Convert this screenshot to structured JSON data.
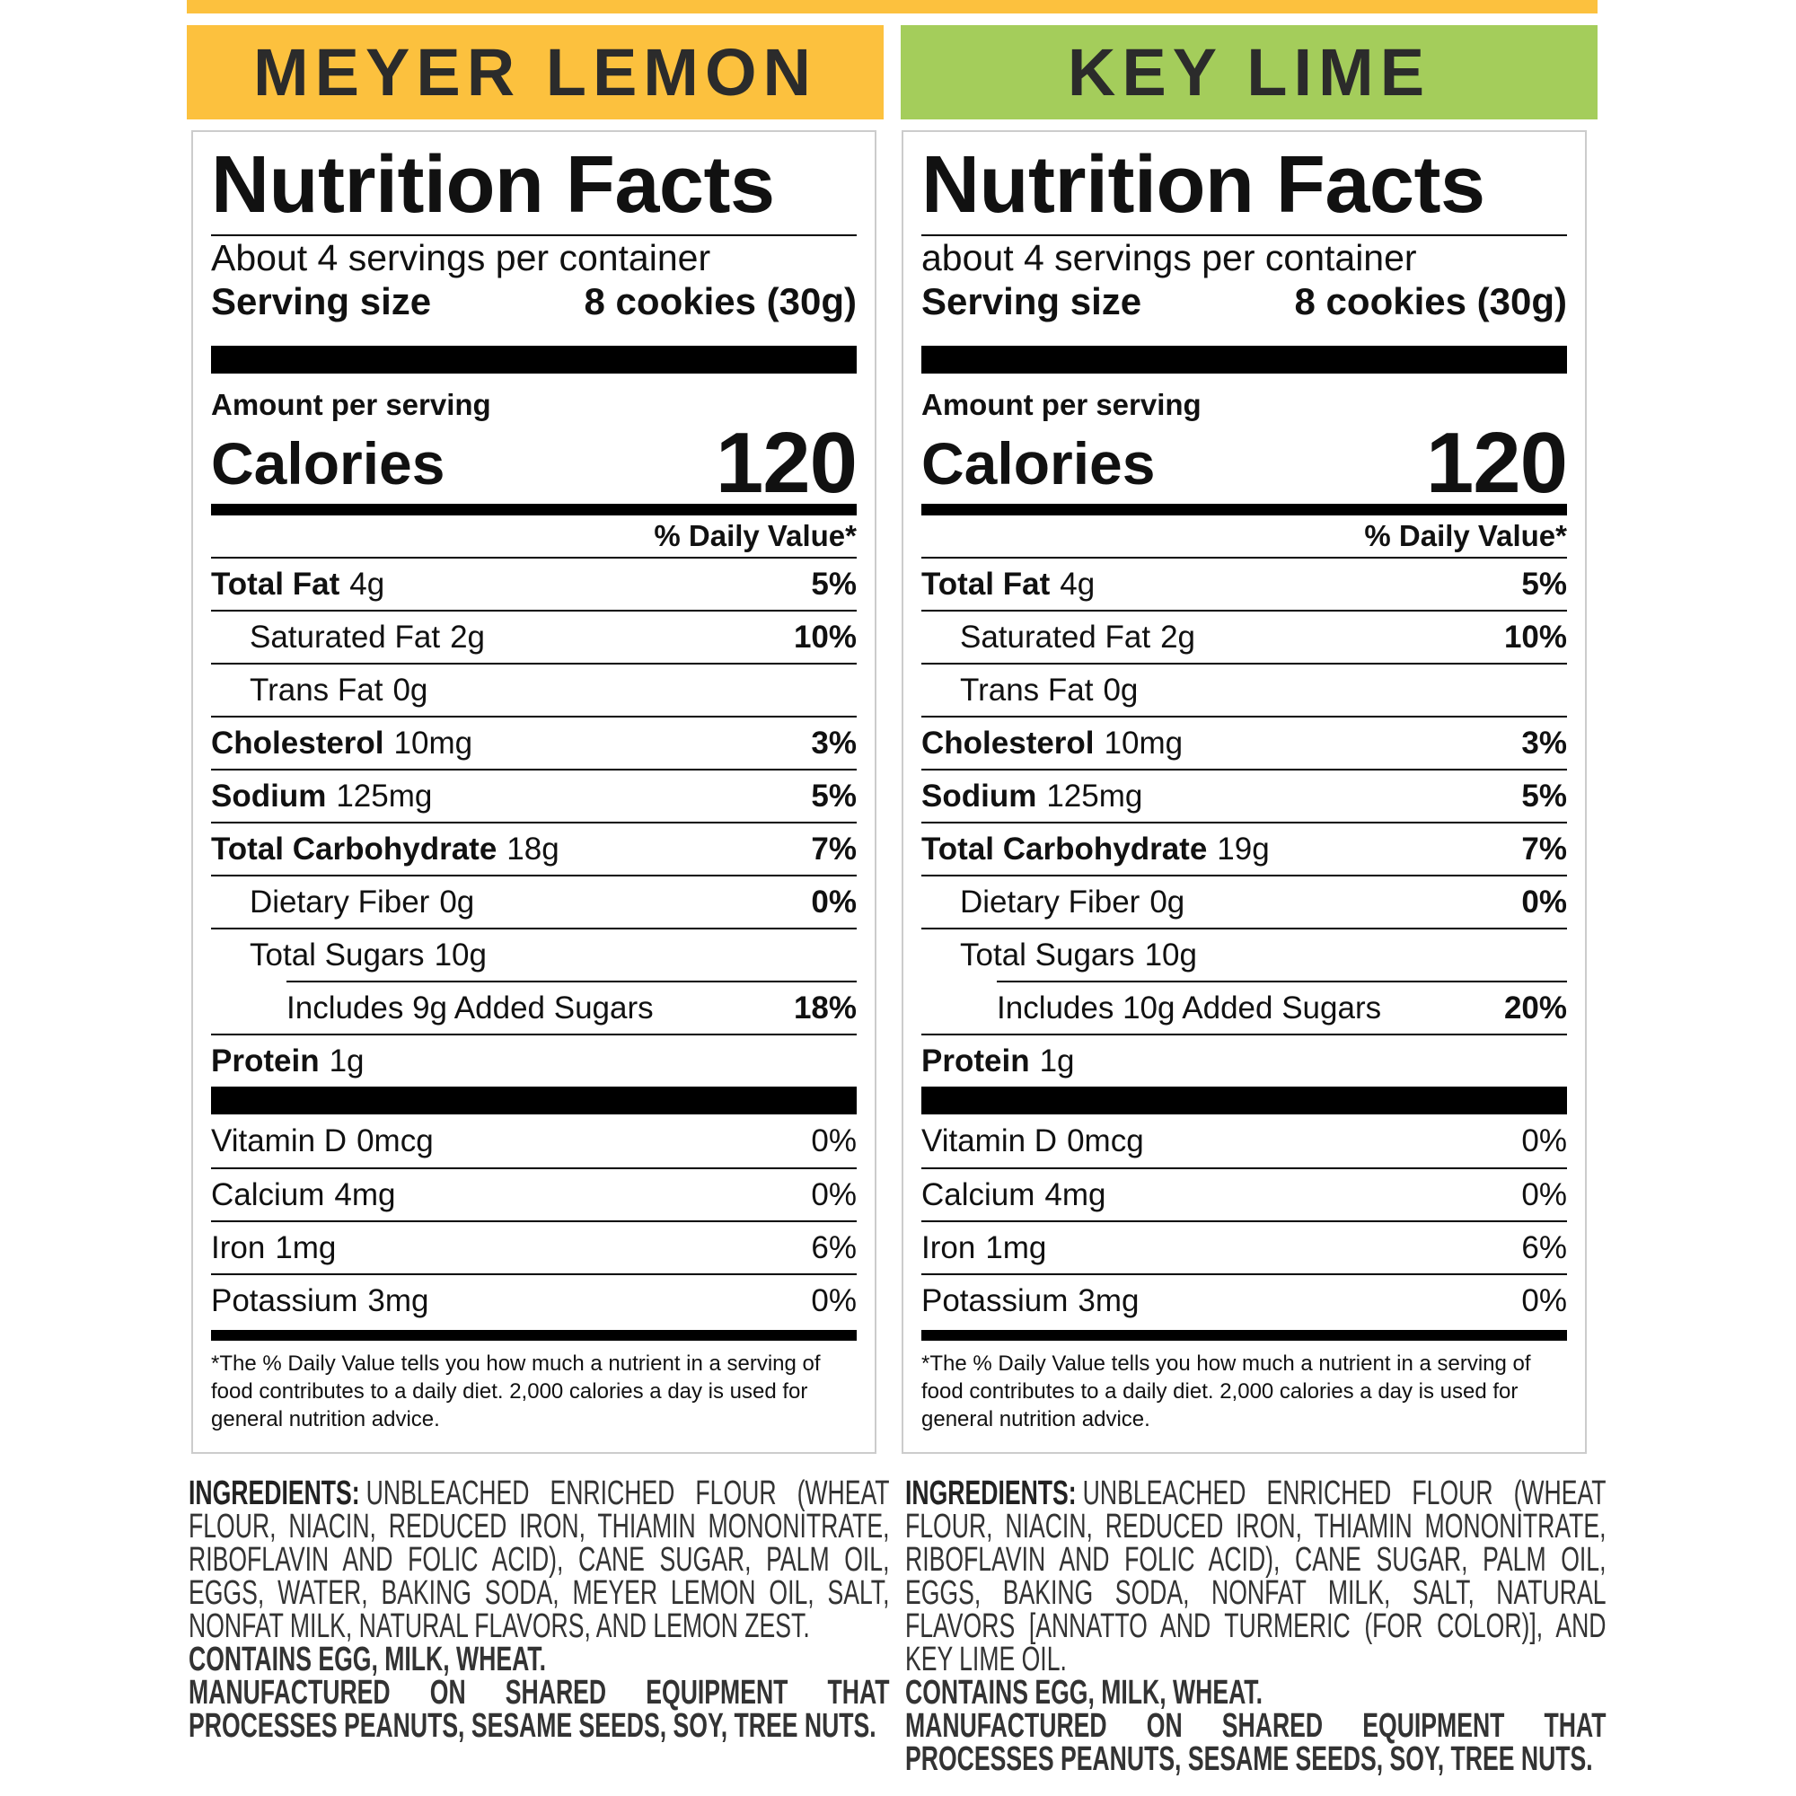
{
  "panels": [
    {
      "flavor": "MEYER LEMON",
      "flavor_color": "#fcc13e",
      "label": {
        "title": "Nutrition Facts",
        "servings": "About 4 servings per container",
        "serving_size_label": "Serving size",
        "serving_size": "8 cookies (30g)",
        "amount_per_serving": "Amount per serving",
        "calories_label": "Calories",
        "calories": 120,
        "dv_header": "% Daily Value*",
        "nutrients": [
          {
            "name": "Total Fat",
            "amount": "4g",
            "dv": "5%",
            "bold": true,
            "indent": 0
          },
          {
            "name": "Saturated Fat",
            "amount": "2g",
            "dv": "10%",
            "bold": false,
            "indent": 1
          },
          {
            "name": "Trans Fat",
            "amount": "0g",
            "bold": false,
            "indent": 1
          },
          {
            "name": "Cholesterol",
            "amount": "10mg",
            "dv": "3%",
            "bold": true,
            "indent": 0
          },
          {
            "name": "Sodium",
            "amount": "125mg",
            "dv": "5%",
            "bold": true,
            "indent": 0
          },
          {
            "name": "Total Carbohydrate",
            "amount": "18g",
            "dv": "7%",
            "bold": true,
            "indent": 0
          },
          {
            "name": "Dietary Fiber",
            "amount": "0g",
            "dv": "0%",
            "bold": false,
            "indent": 1
          },
          {
            "name": "Total Sugars",
            "amount": "10g",
            "bold": false,
            "indent": 1
          },
          {
            "name": "Includes 9g Added Sugars",
            "dv": "18%",
            "bold": false,
            "indent": 2
          },
          {
            "name": "Protein",
            "amount": "1g",
            "bold": true,
            "indent": 0
          }
        ],
        "vitamins": [
          {
            "name": "Vitamin D",
            "amount": "0mcg",
            "dv": "0%"
          },
          {
            "name": "Calcium",
            "amount": "4mg",
            "dv": "0%"
          },
          {
            "name": "Iron",
            "amount": "1mg",
            "dv": "6%"
          },
          {
            "name": "Potassium",
            "amount": "3mg",
            "dv": "0%"
          }
        ],
        "footnote": "*The % Daily Value tells you how much a nutrient in a serving of food contributes to a daily diet. 2,000 calories a day is used for general nutrition advice."
      },
      "ingredients": {
        "label": "INGREDIENTS:",
        "text": "UNBLEACHED ENRICHED FLOUR (WHEAT FLOUR, NIACIN, REDUCED IRON, THIAMIN MONONITRATE, RIBOFLAVIN AND FOLIC ACID), CANE SUGAR, PALM OIL, EGGS, WATER, BAKING SODA, MEYER LEMON OIL, SALT, NONFAT MILK, NATURAL FLAVORS, AND LEMON ZEST.",
        "contains": "CONTAINS EGG, MILK, WHEAT.",
        "facility": "MANUFACTURED ON SHARED EQUIPMENT THAT PROCESSES PEANUTS, SESAME SEEDS, SOY, TREE NUTS."
      }
    },
    {
      "flavor": "KEY LIME",
      "flavor_color": "#a4cd5b",
      "label": {
        "title": "Nutrition Facts",
        "servings": "about 4 servings per container",
        "serving_size_label": "Serving size",
        "serving_size": "8 cookies (30g)",
        "amount_per_serving": "Amount per serving",
        "calories_label": "Calories",
        "calories": 120,
        "dv_header": "% Daily Value*",
        "nutrients": [
          {
            "name": "Total Fat",
            "amount": "4g",
            "dv": "5%",
            "bold": true,
            "indent": 0
          },
          {
            "name": "Saturated Fat",
            "amount": "2g",
            "dv": "10%",
            "bold": false,
            "indent": 1
          },
          {
            "name": "Trans Fat",
            "amount": "0g",
            "bold": false,
            "indent": 1
          },
          {
            "name": "Cholesterol",
            "amount": "10mg",
            "dv": "3%",
            "bold": true,
            "indent": 0
          },
          {
            "name": "Sodium",
            "amount": "125mg",
            "dv": "5%",
            "bold": true,
            "indent": 0
          },
          {
            "name": "Total Carbohydrate",
            "amount": "19g",
            "dv": "7%",
            "bold": true,
            "indent": 0
          },
          {
            "name": "Dietary Fiber",
            "amount": "0g",
            "dv": "0%",
            "bold": false,
            "indent": 1
          },
          {
            "name": "Total Sugars",
            "amount": "10g",
            "bold": false,
            "indent": 1
          },
          {
            "name": "Includes 10g Added Sugars",
            "dv": "20%",
            "bold": false,
            "indent": 2
          },
          {
            "name": "Protein",
            "amount": "1g",
            "bold": true,
            "indent": 0
          }
        ],
        "vitamins": [
          {
            "name": "Vitamin D",
            "amount": "0mcg",
            "dv": "0%"
          },
          {
            "name": "Calcium",
            "amount": "4mg",
            "dv": "0%"
          },
          {
            "name": "Iron",
            "amount": "1mg",
            "dv": "6%"
          },
          {
            "name": "Potassium",
            "amount": "3mg",
            "dv": "0%"
          }
        ],
        "footnote": "*The % Daily Value tells you how much a nutrient in a serving of food contributes to a daily diet. 2,000 calories a day is used for general nutrition advice."
      },
      "ingredients": {
        "label": "INGREDIENTS:",
        "text": "UNBLEACHED ENRICHED FLOUR (WHEAT FLOUR, NIACIN, REDUCED IRON, THIAMIN MONONITRATE, RIBOFLAVIN AND FOLIC ACID), CANE SUGAR, PALM OIL, EGGS, BAKING SODA, NONFAT MILK, SALT, NATURAL FLAVORS [ANNATTO AND TURMERIC (FOR COLOR)], AND KEY LIME OIL.",
        "contains": "CONTAINS EGG, MILK, WHEAT.",
        "facility": "MANUFACTURED ON SHARED EQUIPMENT THAT PROCESSES PEANUTS, SESAME SEEDS, SOY, TREE NUTS."
      }
    }
  ]
}
